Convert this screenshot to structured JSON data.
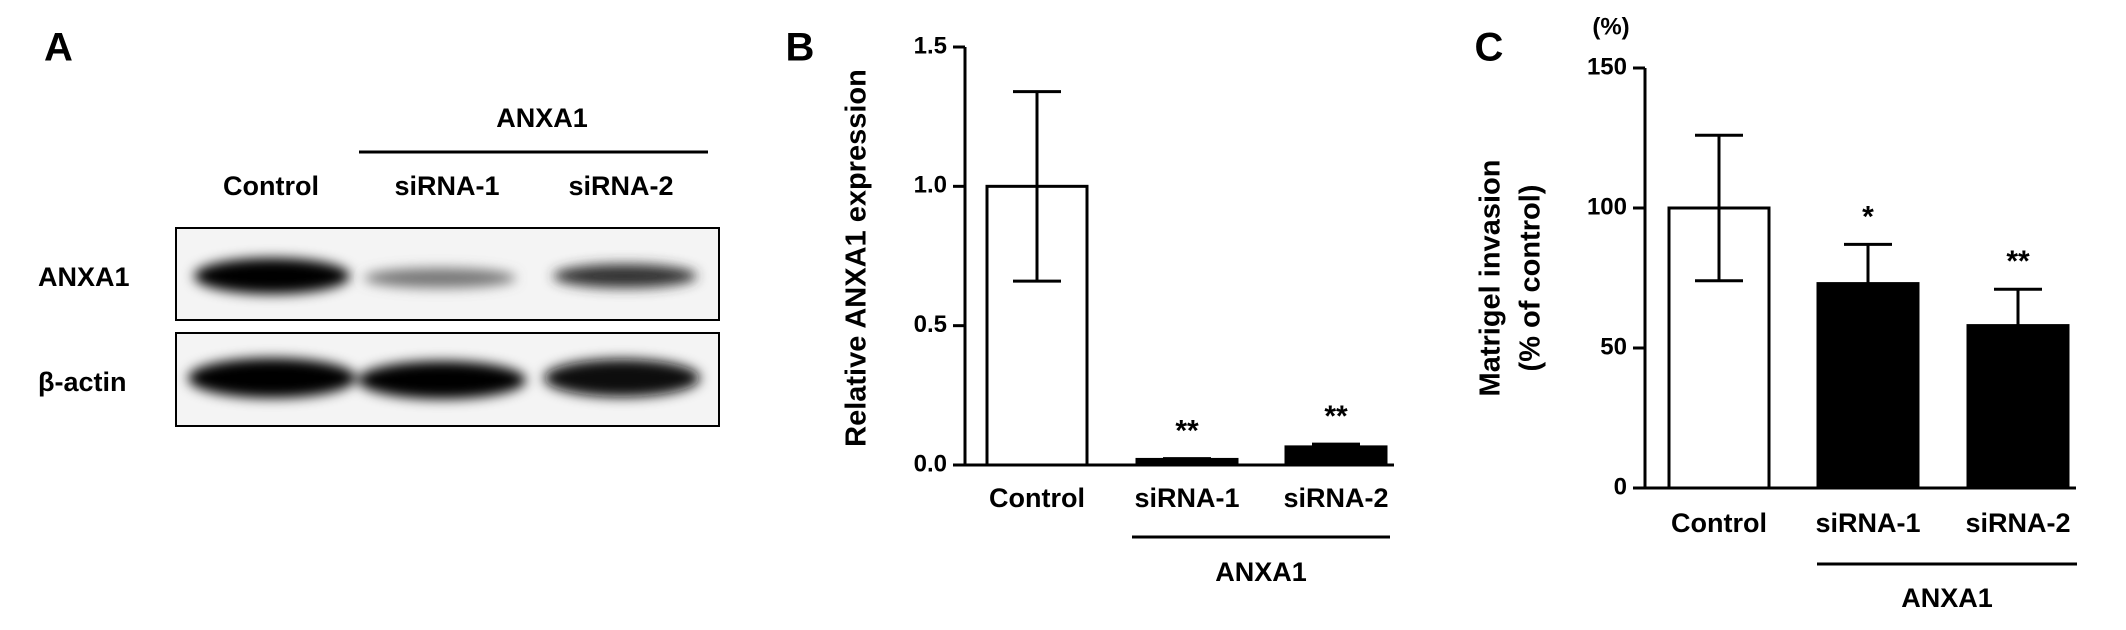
{
  "panel_a": {
    "label": "A",
    "group_label": "ANXA1",
    "lanes": [
      "Control",
      "siRNA-1",
      "siRNA-2"
    ],
    "rows": [
      "ANXA1",
      "β-actin"
    ]
  },
  "chart_data": [
    {
      "type": "bar",
      "panel_label": "B",
      "ylabel": "Relative ANXA1 expression",
      "categories": [
        "Control",
        "siRNA-1",
        "siRNA-2"
      ],
      "values": [
        1.0,
        0.02,
        0.065
      ],
      "errors": [
        0.34,
        0.003,
        0.01
      ],
      "colors": [
        "#ffffff",
        "#000000",
        "#000000"
      ],
      "annotations": [
        null,
        "**",
        "**"
      ],
      "group_label": "ANXA1",
      "ylim": [
        0,
        1.5
      ],
      "yticks": [
        {
          "value": 0,
          "label": "0.0"
        },
        0.5,
        {
          "value": 1,
          "label": "1.0"
        },
        1.5
      ]
    },
    {
      "type": "bar",
      "panel_label": "C",
      "ylabel": [
        "Matrigel invasion",
        "(% of control)"
      ],
      "yunit": "(%)",
      "categories": [
        "Control",
        "siRNA-1",
        "siRNA-2"
      ],
      "values": [
        100,
        73,
        58
      ],
      "errors": [
        26,
        14,
        13
      ],
      "colors": [
        "#ffffff",
        "#000000",
        "#000000"
      ],
      "annotations": [
        null,
        "*",
        "**"
      ],
      "group_label": "ANXA1",
      "ylim": [
        0,
        150
      ],
      "yticks": [
        0,
        50,
        100,
        150
      ]
    }
  ]
}
